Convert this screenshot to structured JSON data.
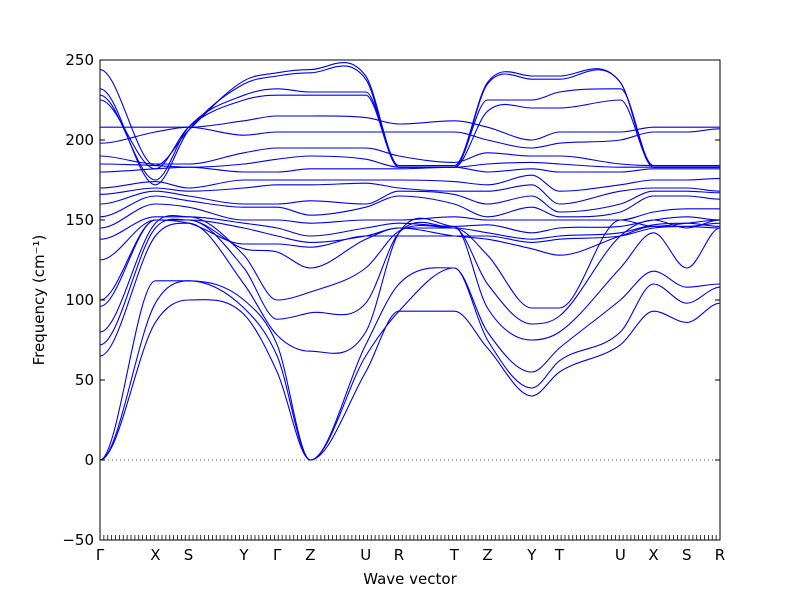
{
  "chart_data": {
    "type": "line",
    "xlabel": "Wave vector",
    "ylabel": "Frequency (cm⁻¹)",
    "ylim": [
      -50,
      250
    ],
    "yticks": [
      -50,
      0,
      50,
      100,
      150,
      200,
      250
    ],
    "zero_line": true,
    "grid": false,
    "line_color": "#0000ee",
    "high_symmetry_points": [
      {
        "label": "Γ",
        "x": 0.0
      },
      {
        "label": "X",
        "x": 0.5
      },
      {
        "label": "S",
        "x": 0.8
      },
      {
        "label": "Y",
        "x": 1.3
      },
      {
        "label": "Γ",
        "x": 1.6
      },
      {
        "label": "Z",
        "x": 1.9
      },
      {
        "label": "U",
        "x": 2.4
      },
      {
        "label": "R",
        "x": 2.7
      },
      {
        "label": "T",
        "x": 3.2
      },
      {
        "label": "Z",
        "x": 3.5
      },
      {
        "label": "Y",
        "x": 3.9
      },
      {
        "label": "T",
        "x": 4.15
      },
      {
        "label": "U",
        "x": 4.7
      },
      {
        "label": "X",
        "x": 5.0
      },
      {
        "label": "S",
        "x": 5.3
      },
      {
        "label": "R",
        "x": 5.6
      }
    ],
    "series": [
      {
        "values": [
          0,
          86,
          100,
          91,
          55,
          0,
          55,
          93,
          93,
          70,
          40,
          55,
          72,
          93,
          86,
          98,
          93
        ]
      },
      {
        "values": [
          0,
          98,
          112,
          95,
          65,
          0,
          65,
          93,
          120,
          75,
          45,
          62,
          80,
          110,
          98,
          108,
          120
        ]
      },
      {
        "values": [
          0,
          112,
          112,
          100,
          72,
          0,
          72,
          110,
          120,
          80,
          55,
          70,
          100,
          118,
          108,
          110,
          120
        ]
      },
      {
        "values": [
          65,
          140,
          148,
          110,
          78,
          68,
          80,
          142,
          146,
          95,
          75,
          80,
          120,
          142,
          120,
          145,
          146
        ]
      },
      {
        "values": [
          72,
          145,
          150,
          120,
          88,
          92,
          98,
          142,
          145,
          110,
          85,
          90,
          140,
          150,
          145,
          150,
          146
        ]
      },
      {
        "values": [
          80,
          148,
          152,
          128,
          100,
          105,
          120,
          143,
          145,
          128,
          95,
          95,
          150,
          146,
          148,
          150,
          146
        ]
      },
      {
        "values": [
          96,
          150,
          150,
          132,
          130,
          120,
          138,
          145,
          140,
          138,
          132,
          128,
          140,
          146,
          146,
          148,
          147
        ]
      },
      {
        "values": [
          100,
          150,
          148,
          135,
          135,
          133,
          140,
          140,
          140,
          140,
          136,
          138,
          140,
          145,
          146,
          145,
          145
        ]
      },
      {
        "values": [
          125,
          150,
          150,
          145,
          140,
          136,
          140,
          145,
          145,
          142,
          138,
          140,
          142,
          147,
          148,
          146,
          147
        ]
      },
      {
        "values": [
          138,
          152,
          152,
          148,
          145,
          140,
          145,
          148,
          146,
          147,
          142,
          145,
          146,
          150,
          152,
          150,
          150
        ]
      },
      {
        "values": [
          145,
          160,
          158,
          150,
          150,
          148,
          150,
          150,
          152,
          150,
          150,
          150,
          150,
          155,
          157,
          157,
          156
        ]
      },
      {
        "values": [
          152,
          165,
          162,
          158,
          158,
          153,
          158,
          165,
          160,
          152,
          158,
          152,
          155,
          165,
          165,
          163,
          162
        ]
      },
      {
        "values": [
          160,
          168,
          165,
          160,
          160,
          162,
          160,
          168,
          166,
          160,
          165,
          155,
          160,
          168,
          168,
          167,
          167
        ]
      },
      {
        "values": [
          166,
          170,
          168,
          170,
          172,
          172,
          173,
          170,
          168,
          168,
          172,
          160,
          168,
          170,
          170,
          168,
          167
        ]
      },
      {
        "values": [
          170,
          174,
          170,
          175,
          175,
          175,
          175,
          175,
          174,
          172,
          178,
          168,
          172,
          175,
          175,
          176,
          175
        ]
      },
      {
        "values": [
          180,
          182,
          183,
          180,
          180,
          182,
          182,
          182,
          183,
          180,
          182,
          180,
          180,
          182,
          182,
          182,
          181
        ]
      },
      {
        "values": [
          185,
          184,
          183,
          185,
          188,
          190,
          188,
          183,
          183,
          185,
          186,
          185,
          183,
          183,
          183,
          183,
          183
        ]
      },
      {
        "values": [
          190,
          185,
          185,
          192,
          195,
          195,
          195,
          190,
          186,
          192,
          190,
          190,
          185,
          184,
          184,
          184,
          184
        ]
      },
      {
        "values": [
          198,
          205,
          208,
          203,
          205,
          205,
          205,
          205,
          205,
          200,
          195,
          198,
          200,
          205,
          205,
          207,
          209
        ]
      },
      {
        "values": [
          208,
          208,
          208,
          212,
          215,
          215,
          214,
          210,
          212,
          208,
          200,
          205,
          205,
          208,
          208,
          208,
          209
        ]
      },
      {
        "values": [
          225,
          182,
          208,
          225,
          228,
          228,
          228,
          183,
          183,
          218,
          220,
          220,
          225,
          183,
          183,
          183,
          183
        ]
      },
      {
        "values": [
          228,
          175,
          208,
          228,
          232,
          230,
          230,
          183,
          183,
          225,
          225,
          230,
          232,
          183,
          183,
          183,
          183
        ]
      },
      {
        "values": [
          232,
          172,
          206,
          235,
          240,
          242,
          238,
          183,
          183,
          235,
          238,
          238,
          236,
          183,
          183,
          183,
          183
        ]
      },
      {
        "values": [
          244,
          184,
          206,
          237,
          242,
          244,
          240,
          184,
          184,
          236,
          240,
          240,
          236,
          184,
          184,
          184,
          184
        ]
      }
    ]
  }
}
